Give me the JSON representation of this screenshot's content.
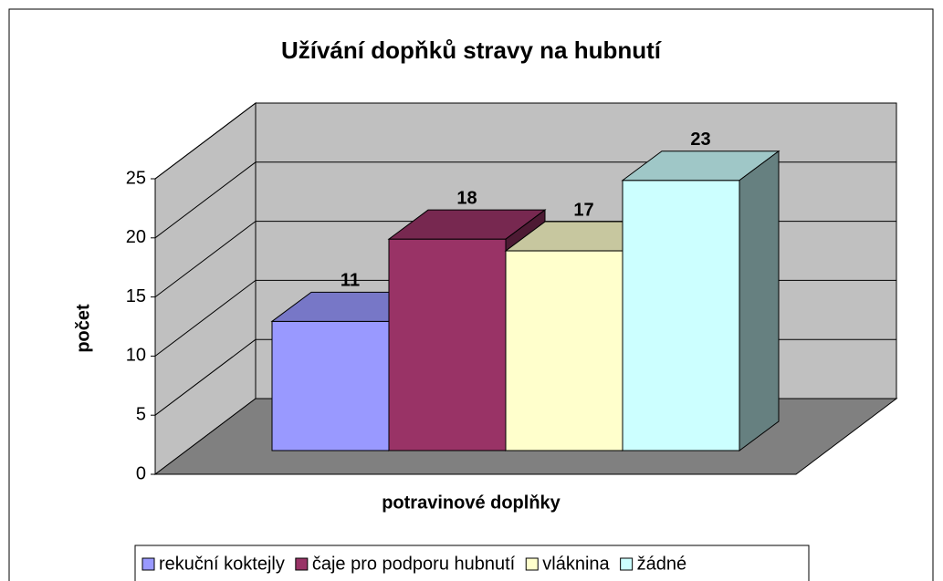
{
  "chart_data": {
    "type": "bar3d",
    "title": "Užívání dopňků stravy na hubnutí",
    "y_label": "počet",
    "x_label": "potravinové doplňky",
    "categories": [
      null
    ],
    "series": [
      {
        "name": "rekuční koktejly",
        "color": "#9999ff",
        "values": [
          11
        ]
      },
      {
        "name": "čaje pro podporu hubnutí",
        "color": "#993366",
        "values": [
          18
        ]
      },
      {
        "name": "vláknina",
        "color": "#ffffcc",
        "values": [
          17
        ]
      },
      {
        "name": "žádné",
        "color": "#ccffff",
        "values": [
          23
        ]
      }
    ],
    "ylim": [
      0,
      25
    ],
    "yticks": [
      0,
      5,
      10,
      15,
      20,
      25
    ],
    "grid": true,
    "legend": "bottom"
  }
}
